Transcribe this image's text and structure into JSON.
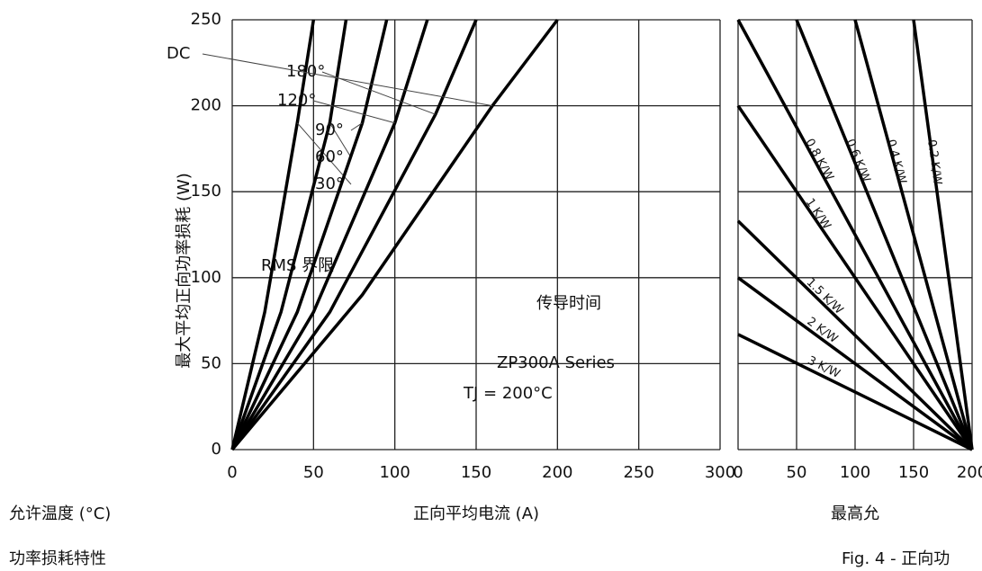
{
  "chart_data": [
    {
      "type": "line",
      "ylabel": "最大平均正向功率损耗 (W)",
      "xlabel": "正向平均电流 (A)",
      "annotations": [
        "RMS 界限",
        "传导时间",
        "ZP300A Series",
        "TJ = 200°C"
      ],
      "xlim": [
        0,
        300
      ],
      "xticks": [
        0,
        50,
        100,
        150,
        200,
        250,
        300
      ],
      "ylim": [
        0,
        250
      ],
      "yticks": [
        0,
        50,
        100,
        150,
        200,
        250
      ],
      "grid": true,
      "series": [
        {
          "name": "30°",
          "color": "#000000",
          "x": [
            0,
            20,
            40,
            50
          ],
          "values": [
            0,
            80,
            190,
            250
          ]
        },
        {
          "name": "60°",
          "color": "#000000",
          "x": [
            0,
            30,
            60,
            70
          ],
          "values": [
            0,
            80,
            190,
            250
          ]
        },
        {
          "name": "90°",
          "color": "#000000",
          "x": [
            0,
            40,
            80,
            95
          ],
          "values": [
            0,
            80,
            190,
            250
          ]
        },
        {
          "name": "120°",
          "color": "#000000",
          "x": [
            0,
            50,
            100,
            120
          ],
          "values": [
            0,
            80,
            190,
            250
          ]
        },
        {
          "name": "180°",
          "color": "#000000",
          "x": [
            0,
            60,
            125,
            150
          ],
          "values": [
            0,
            80,
            195,
            250
          ]
        },
        {
          "name": "DC",
          "color": "#000000",
          "x": [
            0,
            80,
            160,
            200
          ],
          "values": [
            0,
            90,
            200,
            250
          ]
        }
      ]
    },
    {
      "type": "line",
      "xlabel": "最高允",
      "xlim": [
        0,
        200
      ],
      "xticks": [
        0,
        50,
        100,
        150,
        200
      ],
      "ylim": [
        0,
        250
      ],
      "yticks": [
        0,
        50,
        100,
        150,
        200,
        250
      ],
      "grid": true,
      "series": [
        {
          "name": "0.2 K/W",
          "color": "#000000",
          "x": [
            150,
            200
          ],
          "values": [
            250,
            0
          ]
        },
        {
          "name": "0.4 K/W",
          "color": "#000000",
          "x": [
            100,
            200
          ],
          "values": [
            250,
            0
          ]
        },
        {
          "name": "0.6 K/W",
          "color": "#000000",
          "x": [
            50,
            200
          ],
          "values": [
            250,
            0
          ]
        },
        {
          "name": "0.8 K/W",
          "color": "#000000",
          "x": [
            0,
            200
          ],
          "values": [
            250,
            0
          ]
        },
        {
          "name": "1 K/W",
          "color": "#000000",
          "x": [
            0,
            200
          ],
          "values": [
            200,
            0
          ]
        },
        {
          "name": "1.5 K/W",
          "color": "#000000",
          "x": [
            0,
            200
          ],
          "values": [
            133,
            0
          ]
        },
        {
          "name": "2 K/W",
          "color": "#000000",
          "x": [
            0,
            200
          ],
          "values": [
            100,
            0
          ]
        },
        {
          "name": "3 K/W",
          "color": "#000000",
          "x": [
            0,
            200
          ],
          "values": [
            67,
            0
          ]
        }
      ]
    }
  ],
  "captions": {
    "left_axis": "允许温度 (°C)",
    "left_caption": "功率损耗特性",
    "figure": "Fig. 4 - 正向功"
  }
}
